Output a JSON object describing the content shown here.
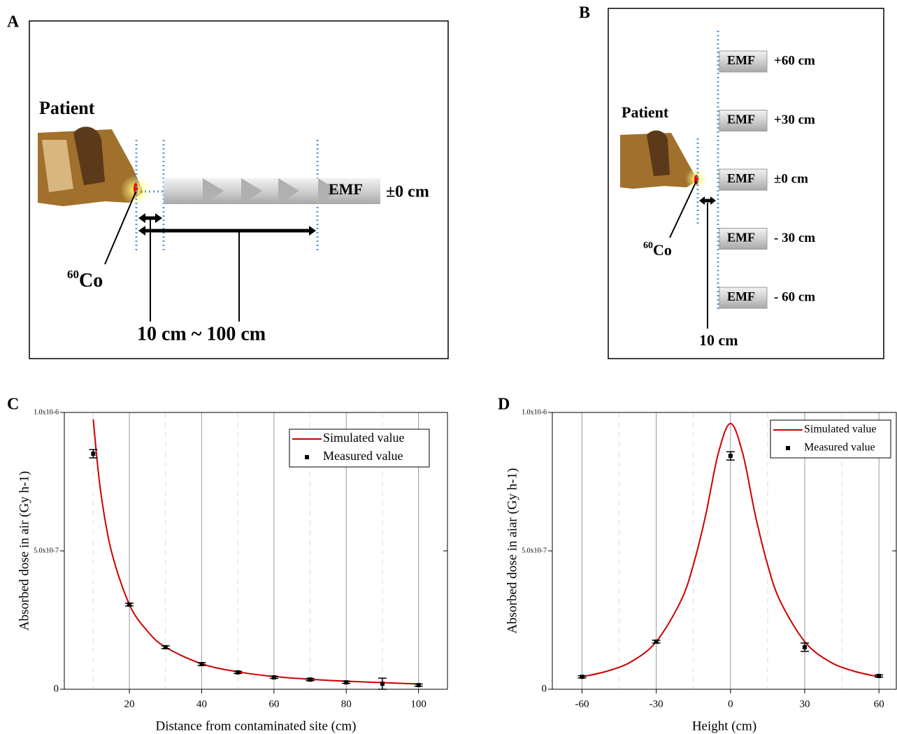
{
  "panels": {
    "A": {
      "label": "A",
      "patient": "Patient",
      "isotope_mass": "60",
      "isotope": "Co",
      "detector": "EMF",
      "height": "±0 cm",
      "distance": "10 cm ~ 100 cm"
    },
    "B": {
      "label": "B",
      "patient": "Patient",
      "isotope_mass": "60",
      "isotope": "Co",
      "detector": "EMF",
      "heights": [
        "+60 cm",
        "+30 cm",
        "±0 cm",
        "- 30 cm",
        "- 60 cm"
      ],
      "distance": "10 cm"
    }
  },
  "chart_data": [
    {
      "type": "line",
      "panel_label": "C",
      "xlabel": "Distance from contaminated site (cm)",
      "ylabel": "Absorbed dose in air (Gy h-1)",
      "xlim": [
        2,
        108
      ],
      "ylim": [
        0,
        1e-06
      ],
      "xticks": [
        20,
        40,
        60,
        80,
        100
      ],
      "xminor_ticks": [
        10,
        30,
        50,
        70,
        90
      ],
      "yticks": [
        0,
        {
          "value": 5e-07,
          "label": "5.0x10-7"
        },
        {
          "value": 1e-06,
          "label": "1.0x10-6"
        }
      ],
      "grid": true,
      "legend": "upper right",
      "series": [
        {
          "name": "Simulated value",
          "type": "line",
          "color": "#cc0000",
          "x": [
            10,
            12,
            15,
            20,
            25,
            30,
            40,
            50,
            60,
            70,
            80,
            90,
            100
          ],
          "values": [
            9.75e-07,
            7.2e-07,
            5e-07,
            3.06e-07,
            2.1e-07,
            1.52e-07,
            9.2e-08,
            6.3e-08,
            4.6e-08,
            3.6e-08,
            2.9e-08,
            2.4e-08,
            1.9e-08
          ]
        },
        {
          "name": "Measured value",
          "type": "scatter",
          "color": "#000000",
          "x": [
            10,
            20,
            30,
            40,
            50,
            60,
            70,
            80,
            90,
            100
          ],
          "values": [
            8.51e-07,
            3.06e-07,
            1.52e-07,
            9.1e-08,
            6.1e-08,
            4.3e-08,
            3.5e-08,
            2.5e-08,
            2e-08,
            1.5e-08
          ],
          "errors": [
            1.5e-08,
            5e-09,
            5e-09,
            5e-09,
            4e-09,
            4e-09,
            4e-09,
            4e-09,
            2e-08,
            4e-09
          ]
        }
      ]
    },
    {
      "type": "line",
      "panel_label": "D",
      "xlabel": "Height (cm)",
      "ylabel": "Absorbed dose in aiar (Gy h-1)",
      "xlim": [
        -72,
        67
      ],
      "ylim": [
        0,
        1e-06
      ],
      "xticks": [
        -60,
        -30,
        0,
        30,
        60
      ],
      "xminor_ticks": [
        -45,
        -15,
        15,
        45
      ],
      "yticks": [
        0,
        {
          "value": 5e-07,
          "label": "5.0x10-7"
        },
        {
          "value": 1e-06,
          "label": "1.0x10-6"
        }
      ],
      "grid": true,
      "legend": "upper right",
      "series": [
        {
          "name": "Simulated value",
          "type": "line",
          "color": "#cc0000",
          "x": [
            -60,
            -50,
            -40,
            -30,
            -20,
            -15,
            -10,
            -5,
            0,
            5,
            10,
            15,
            20,
            30,
            40,
            50,
            60
          ],
          "values": [
            4.5e-08,
            6.5e-08,
            1e-07,
            1.72e-07,
            3.2e-07,
            4.5e-07,
            6.3e-07,
            8.5e-07,
            9.6e-07,
            8.5e-07,
            6.3e-07,
            4.5e-07,
            3.2e-07,
            1.72e-07,
            1e-07,
            6.5e-08,
            4.5e-08
          ]
        },
        {
          "name": "Measured value",
          "type": "scatter",
          "color": "#000000",
          "x": [
            -60,
            -30,
            0,
            30,
            60
          ],
          "values": [
            4.5e-08,
            1.72e-07,
            8.43e-07,
            1.52e-07,
            4.8e-08
          ],
          "errors": [
            4e-09,
            5e-09,
            1.5e-08,
            1.5e-08,
            4e-09
          ]
        }
      ]
    }
  ]
}
